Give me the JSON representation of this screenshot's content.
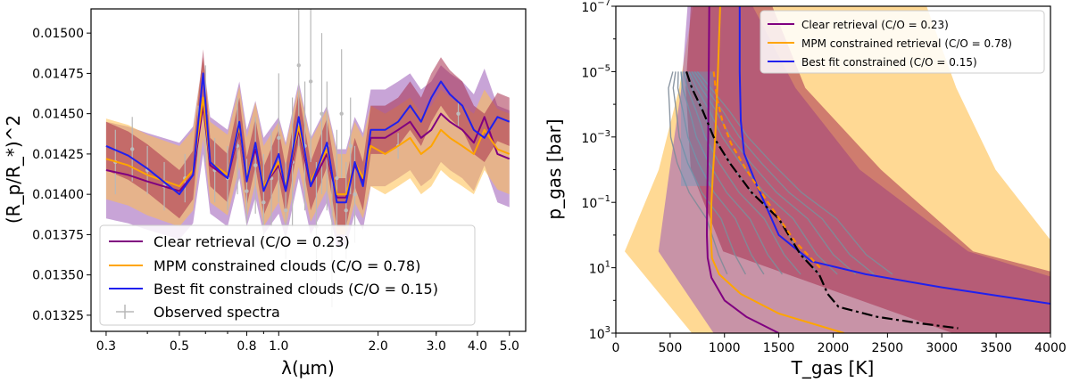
{
  "chart_data": [
    {
      "type": "line",
      "panel": "left",
      "xlabel": "λ(μm)",
      "ylabel": "(R_p/R_*)^2",
      "xscale": "log",
      "xlim": [
        0.27,
        5.6
      ],
      "ylim": [
        0.01315,
        0.01515
      ],
      "xticks": [
        {
          "v": 0.3,
          "label": "0.3"
        },
        {
          "v": 0.5,
          "label": "0.5"
        },
        {
          "v": 0.8,
          "label": "0.8"
        },
        {
          "v": 1.0,
          "label": "1.0"
        },
        {
          "v": 2.0,
          "label": "2.0"
        },
        {
          "v": 3.0,
          "label": "3.0"
        },
        {
          "v": 4.0,
          "label": "4.0"
        },
        {
          "v": 5.0,
          "label": "5.0"
        }
      ],
      "yticks": [
        {
          "v": 0.01325,
          "label": "0.01325"
        },
        {
          "v": 0.0135,
          "label": "0.01350"
        },
        {
          "v": 0.01375,
          "label": "0.01375"
        },
        {
          "v": 0.014,
          "label": "0.01400"
        },
        {
          "v": 0.01425,
          "label": "0.01425"
        },
        {
          "v": 0.0145,
          "label": "0.01450"
        },
        {
          "v": 0.01475,
          "label": "0.01475"
        },
        {
          "v": 0.015,
          "label": "0.01500"
        }
      ],
      "legend_position": "lower-left",
      "legend": [
        {
          "label": "Clear retrieval (C/O = 0.23)",
          "color": "#800080",
          "kind": "line"
        },
        {
          "label": "MPM constrained clouds (C/O = 0.78)",
          "color": "#ffa500",
          "kind": "line"
        },
        {
          "label": "Best fit constrained clouds (C/O = 0.15)",
          "color": "#2020ee",
          "kind": "line"
        },
        {
          "label": "Observed spectra",
          "color": "#b8b8b8",
          "kind": "errorbar"
        }
      ],
      "series": [
        {
          "name": "Clear retrieval (C/O = 0.23)",
          "color": "#800080",
          "x": [
            0.3,
            0.35,
            0.4,
            0.5,
            0.55,
            0.59,
            0.62,
            0.7,
            0.76,
            0.8,
            0.85,
            0.9,
            1.0,
            1.05,
            1.15,
            1.25,
            1.4,
            1.5,
            1.6,
            1.7,
            1.8,
            1.9,
            2.1,
            2.3,
            2.5,
            2.7,
            2.9,
            3.1,
            3.3,
            3.6,
            3.9,
            4.2,
            4.6,
            5.0
          ],
          "y": [
            0.01415,
            0.01412,
            0.01408,
            0.01402,
            0.01412,
            0.01455,
            0.01418,
            0.0141,
            0.0144,
            0.0141,
            0.01428,
            0.01405,
            0.01418,
            0.01402,
            0.0144,
            0.01405,
            0.01425,
            0.01398,
            0.01398,
            0.01418,
            0.01408,
            0.01435,
            0.01435,
            0.0144,
            0.01445,
            0.01435,
            0.0144,
            0.0145,
            0.01445,
            0.0144,
            0.01432,
            0.01448,
            0.01425,
            0.01422
          ]
        },
        {
          "name": "MPM constrained clouds (C/O = 0.78)",
          "color": "#ffa500",
          "x": [
            0.3,
            0.35,
            0.4,
            0.5,
            0.55,
            0.59,
            0.62,
            0.7,
            0.76,
            0.8,
            0.85,
            0.9,
            1.0,
            1.05,
            1.15,
            1.25,
            1.4,
            1.5,
            1.6,
            1.7,
            1.8,
            1.9,
            2.1,
            2.3,
            2.5,
            2.7,
            2.9,
            3.1,
            3.3,
            3.6,
            3.9,
            4.2,
            4.6,
            5.0
          ],
          "y": [
            0.01422,
            0.01418,
            0.01412,
            0.01405,
            0.01415,
            0.0146,
            0.0142,
            0.01412,
            0.01442,
            0.0141,
            0.01432,
            0.01405,
            0.0142,
            0.01405,
            0.01442,
            0.01408,
            0.01428,
            0.014,
            0.014,
            0.0142,
            0.0141,
            0.0143,
            0.01425,
            0.0143,
            0.01435,
            0.01425,
            0.0143,
            0.0144,
            0.01435,
            0.0143,
            0.01425,
            0.0144,
            0.01428,
            0.01425
          ]
        },
        {
          "name": "Best fit constrained clouds (C/O = 0.15)",
          "color": "#2020ee",
          "x": [
            0.3,
            0.35,
            0.4,
            0.5,
            0.55,
            0.59,
            0.62,
            0.7,
            0.76,
            0.8,
            0.85,
            0.9,
            1.0,
            1.05,
            1.15,
            1.25,
            1.4,
            1.5,
            1.6,
            1.7,
            1.8,
            1.9,
            2.1,
            2.3,
            2.5,
            2.7,
            2.9,
            3.1,
            3.3,
            3.6,
            3.9,
            4.2,
            4.6,
            5.0
          ],
          "y": [
            0.0143,
            0.01424,
            0.01416,
            0.014,
            0.01412,
            0.01475,
            0.0142,
            0.0141,
            0.01445,
            0.01408,
            0.01432,
            0.01402,
            0.01425,
            0.01402,
            0.01448,
            0.01405,
            0.01432,
            0.01395,
            0.01395,
            0.0142,
            0.01405,
            0.0144,
            0.0144,
            0.01445,
            0.01455,
            0.01445,
            0.0146,
            0.0147,
            0.01462,
            0.01455,
            0.0144,
            0.01435,
            0.01448,
            0.01445
          ]
        }
      ],
      "bands": [
        {
          "color": "#9b59b6",
          "opacity": 0.55,
          "offset": 0.0003
        },
        {
          "color": "#ffc04d",
          "opacity": 0.55,
          "offset": 0.00025
        },
        {
          "color": "#a8304f",
          "opacity": 0.55,
          "offset": 0.00015
        }
      ],
      "observed": {
        "x": [
          0.32,
          0.36,
          0.4,
          0.45,
          0.52,
          0.57,
          0.6,
          0.64,
          0.7,
          0.75,
          0.8,
          0.85,
          0.9,
          0.95,
          1.0,
          1.05,
          1.1,
          1.15,
          1.2,
          1.25,
          1.3,
          1.35,
          1.4,
          1.45,
          1.5,
          1.55,
          1.6,
          1.65,
          1.7,
          2.3,
          3.5
        ],
        "y": [
          0.0142,
          0.01428,
          0.01415,
          0.01405,
          0.0141,
          0.01435,
          0.0145,
          0.01415,
          0.0141,
          0.0143,
          0.01402,
          0.01418,
          0.01395,
          0.0141,
          0.01435,
          0.0139,
          0.0142,
          0.0148,
          0.0143,
          0.0147,
          0.0138,
          0.0145,
          0.0143,
          0.0137,
          0.0141,
          0.0145,
          0.0139,
          0.0143,
          0.014,
          0.0143,
          0.0145
        ],
        "err": [
          0.0002,
          0.0002,
          0.00015,
          0.00015,
          0.00015,
          0.0002,
          0.0003,
          0.0002,
          0.0002,
          0.0003,
          0.0002,
          0.0003,
          0.0003,
          0.0003,
          0.0004,
          0.0003,
          0.0004,
          0.0005,
          0.0004,
          0.0005,
          0.0004,
          0.0005,
          0.0004,
          0.0004,
          0.0003,
          0.0004,
          0.0003,
          0.0003,
          0.0003,
          8e-05,
          8e-05
        ]
      }
    },
    {
      "type": "line",
      "panel": "right",
      "xlabel": "T_gas [K]",
      "ylabel": "p_gas [bar]",
      "yscale": "log",
      "yinverted": true,
      "xlim": [
        0,
        4000
      ],
      "ylim_log10": [
        -7,
        3
      ],
      "xticks": [
        {
          "v": 0,
          "label": "0"
        },
        {
          "v": 500,
          "label": "500"
        },
        {
          "v": 1000,
          "label": "1000"
        },
        {
          "v": 1500,
          "label": "1500"
        },
        {
          "v": 2000,
          "label": "2000"
        },
        {
          "v": 2500,
          "label": "2500"
        },
        {
          "v": 3000,
          "label": "3000"
        },
        {
          "v": 3500,
          "label": "3500"
        },
        {
          "v": 4000,
          "label": "4000"
        }
      ],
      "yticks": [
        {
          "v": -7,
          "label": "10",
          "exp": "−7"
        },
        {
          "v": -5,
          "label": "10",
          "exp": "−5"
        },
        {
          "v": -3,
          "label": "10",
          "exp": "−3"
        },
        {
          "v": -1,
          "label": "10",
          "exp": "−1"
        },
        {
          "v": 1,
          "label": "10",
          "exp": "1"
        },
        {
          "v": 3,
          "label": "10",
          "exp": "3"
        }
      ],
      "legend_position": "top-right",
      "legend": [
        {
          "label": "Clear retrieval (C/O = 0.23)",
          "color": "#800080"
        },
        {
          "label": "MPM constrained retrieval (C/O = 0.78)",
          "color": "#ffa500"
        },
        {
          "label": "Best fit constrained (C/O = 0.15)",
          "color": "#2020ee"
        }
      ],
      "series": [
        {
          "name": "Clear retrieval (C/O = 0.23)",
          "color": "#800080",
          "T": [
            860,
            855,
            850,
            845,
            840,
            838,
            845,
            880,
            1000,
            1200,
            1500
          ],
          "logp": [
            -7,
            -5,
            -3,
            -2,
            -1,
            0,
            0.7,
            1.3,
            2.0,
            2.5,
            3.0
          ]
        },
        {
          "name": "MPM constrained retrieval (C/O = 0.78)",
          "color": "#ffa500",
          "T": [
            960,
            940,
            915,
            895,
            880,
            875,
            885,
            950,
            1150,
            1500,
            2100
          ],
          "logp": [
            -7,
            -5,
            -3,
            -2,
            -1,
            0,
            0.7,
            1.2,
            1.8,
            2.4,
            3.0
          ]
        },
        {
          "name": "Best fit constrained (C/O = 0.15)",
          "color": "#2020ee",
          "T": [
            1140,
            1140,
            1150,
            1180,
            1300,
            1500,
            1800,
            2300,
            3000,
            4000
          ],
          "logp": [
            -7,
            -5,
            -3.5,
            -2.5,
            -1.5,
            0,
            0.8,
            1.2,
            1.6,
            2.1
          ]
        },
        {
          "name": "profile (black dash-dot)",
          "color": "#000000",
          "T": [
            650,
            700,
            800,
            900,
            1050,
            1250,
            1500,
            1700,
            1870,
            1950,
            2050,
            2400,
            2800,
            3150
          ],
          "logp": [
            -5,
            -4.5,
            -3.8,
            -3,
            -2.2,
            -1.3,
            -0.5,
            0.6,
            1.2,
            1.8,
            2.2,
            2.5,
            2.7,
            2.85
          ]
        },
        {
          "name": "profile (orange dashed)",
          "color": "#ff8c00",
          "T": [
            900,
            930,
            980,
            1060,
            1200,
            1400,
            1650,
            1880
          ],
          "logp": [
            -5,
            -4.2,
            -3.5,
            -2.8,
            -2.0,
            -1.0,
            0.2,
            1.0
          ]
        }
      ]
    }
  ]
}
